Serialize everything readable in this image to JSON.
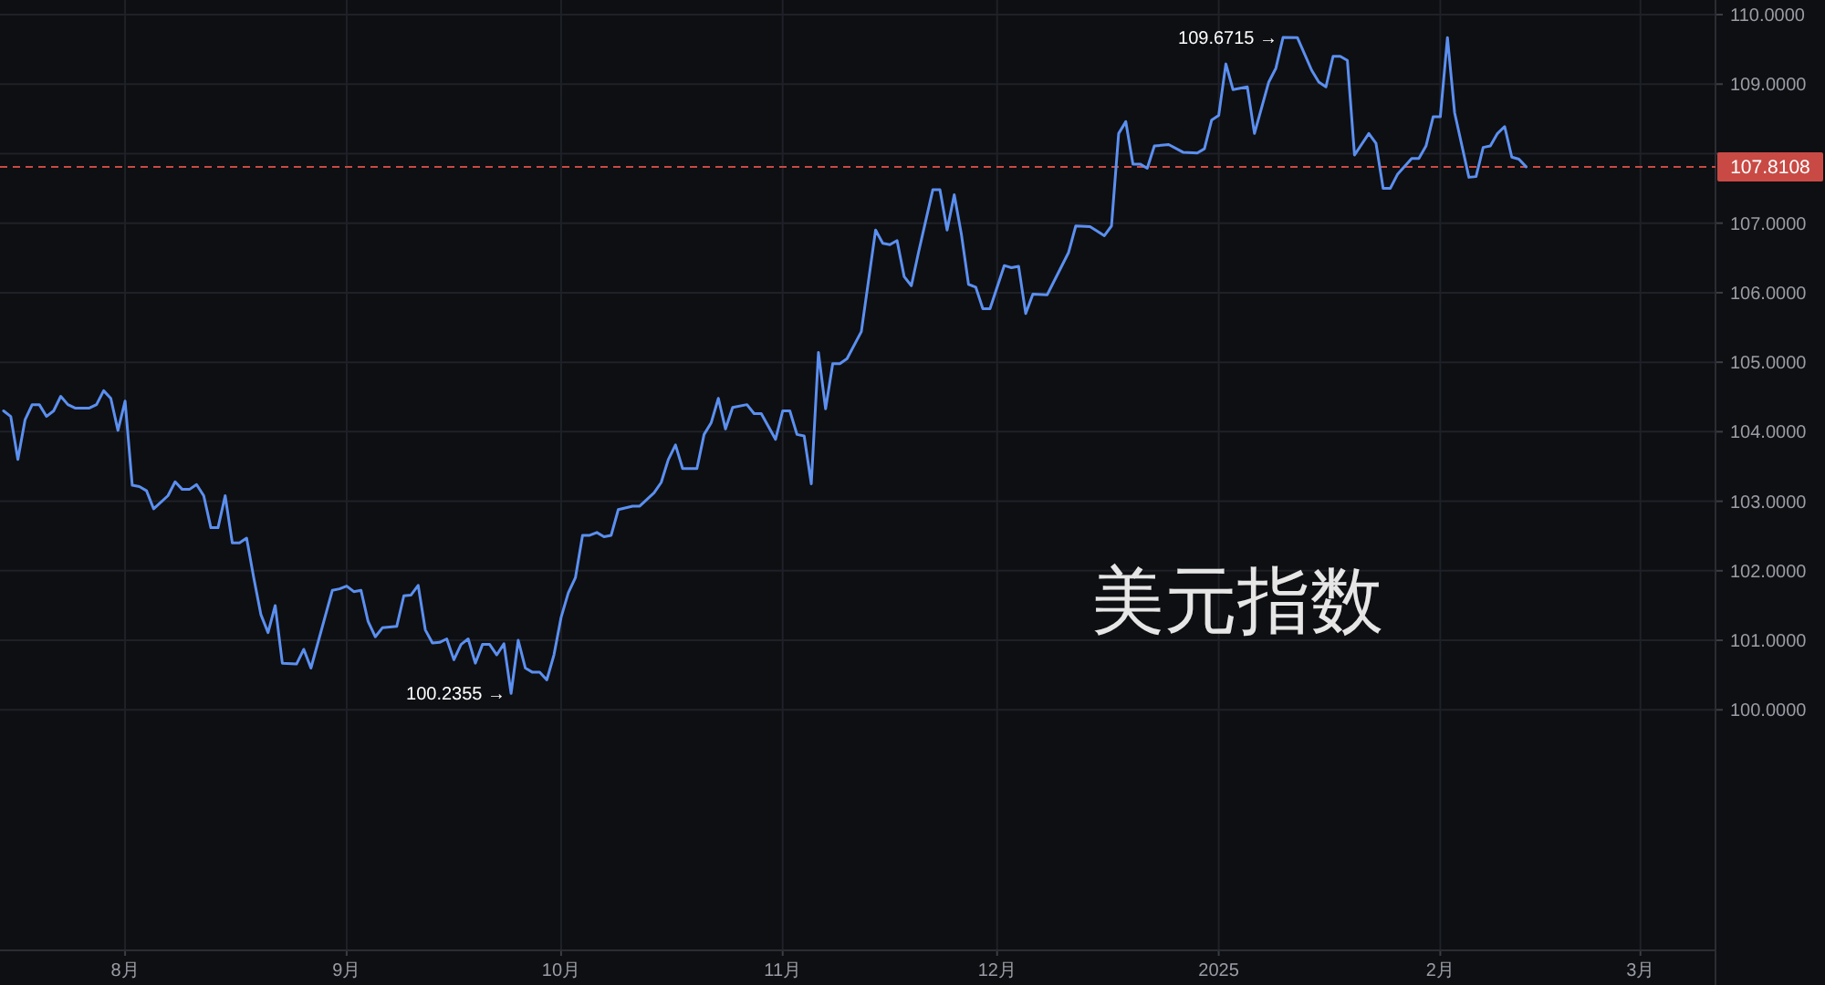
{
  "chart_data": {
    "type": "line",
    "title": "美元指数",
    "x": [
      "2024-07-15",
      "2024-07-16",
      "2024-07-17",
      "2024-07-18",
      "2024-07-19",
      "2024-07-20",
      "2024-07-21",
      "2024-07-22",
      "2024-07-23",
      "2024-07-24",
      "2024-07-25",
      "2024-07-27",
      "2024-07-28",
      "2024-07-29",
      "2024-07-30",
      "2024-07-31",
      "2024-08-01",
      "2024-08-02",
      "2024-08-03",
      "2024-08-04",
      "2024-08-05",
      "2024-08-07",
      "2024-08-08",
      "2024-08-09",
      "2024-08-10",
      "2024-08-11",
      "2024-08-12",
      "2024-08-13",
      "2024-08-14",
      "2024-08-15",
      "2024-08-16",
      "2024-08-17",
      "2024-08-18",
      "2024-08-19",
      "2024-08-20",
      "2024-08-21",
      "2024-08-22",
      "2024-08-23",
      "2024-08-25",
      "2024-08-26",
      "2024-08-27",
      "2024-08-30",
      "2024-08-31",
      "2024-09-01",
      "2024-09-02",
      "2024-09-03",
      "2024-09-04",
      "2024-09-05",
      "2024-09-06",
      "2024-09-08",
      "2024-09-09",
      "2024-09-10",
      "2024-09-11",
      "2024-09-12",
      "2024-09-13",
      "2024-09-14",
      "2024-09-15",
      "2024-09-16",
      "2024-09-17",
      "2024-09-18",
      "2024-09-19",
      "2024-09-20",
      "2024-09-21",
      "2024-09-22",
      "2024-09-23",
      "2024-09-24",
      "2024-09-25",
      "2024-09-26",
      "2024-09-27",
      "2024-09-28",
      "2024-09-29",
      "2024-09-30",
      "2024-10-01",
      "2024-10-02",
      "2024-10-03",
      "2024-10-04",
      "2024-10-05",
      "2024-10-06",
      "2024-10-07",
      "2024-10-08",
      "2024-10-09",
      "2024-10-11",
      "2024-10-12",
      "2024-10-14",
      "2024-10-15",
      "2024-10-16",
      "2024-10-17",
      "2024-10-18",
      "2024-10-20",
      "2024-10-21",
      "2024-10-22",
      "2024-10-23",
      "2024-10-24",
      "2024-10-25",
      "2024-10-27",
      "2024-10-28",
      "2024-10-29",
      "2024-10-31",
      "2024-11-01",
      "2024-11-02",
      "2024-11-03",
      "2024-11-04",
      "2024-11-05",
      "2024-11-06",
      "2024-11-07",
      "2024-11-08",
      "2024-11-09",
      "2024-11-10",
      "2024-11-12",
      "2024-11-14",
      "2024-11-15",
      "2024-11-16",
      "2024-11-17",
      "2024-11-18",
      "2024-11-19",
      "2024-11-20",
      "2024-11-22",
      "2024-11-23",
      "2024-11-24",
      "2024-11-25",
      "2024-11-26",
      "2024-11-27",
      "2024-11-28",
      "2024-11-29",
      "2024-11-30",
      "2024-12-02",
      "2024-12-03",
      "2024-12-04",
      "2024-12-05",
      "2024-12-06",
      "2024-12-08",
      "2024-12-11",
      "2024-12-12",
      "2024-12-14",
      "2024-12-16",
      "2024-12-17",
      "2024-12-18",
      "2024-12-19",
      "2024-12-20",
      "2024-12-21",
      "2024-12-22",
      "2024-12-23",
      "2024-12-25",
      "2024-12-27",
      "2024-12-29",
      "2024-12-30",
      "2024-12-31",
      "2025-01-01",
      "2025-01-02",
      "2025-01-03",
      "2025-01-05",
      "2025-01-06",
      "2025-01-08",
      "2025-01-09",
      "2025-01-10",
      "2025-01-12",
      "2025-01-14",
      "2025-01-15",
      "2025-01-16",
      "2025-01-17",
      "2025-01-18",
      "2025-01-19",
      "2025-01-20",
      "2025-01-22",
      "2025-01-23",
      "2025-01-24",
      "2025-01-25",
      "2025-01-26",
      "2025-01-28",
      "2025-01-29",
      "2025-01-30",
      "2025-01-31",
      "2025-02-01",
      "2025-02-02",
      "2025-02-03",
      "2025-02-05",
      "2025-02-06",
      "2025-02-07",
      "2025-02-08",
      "2025-02-09",
      "2025-02-10",
      "2025-02-11",
      "2025-02-12",
      "2025-02-13"
    ],
    "series": [
      {
        "color": "#5b8ff0",
        "values": [
          104.3,
          104.22,
          103.6,
          104.17,
          104.39,
          104.39,
          104.22,
          104.3,
          104.51,
          104.39,
          104.34,
          104.34,
          104.39,
          104.59,
          104.48,
          104.02,
          104.44,
          103.23,
          103.21,
          103.15,
          102.89,
          103.08,
          103.28,
          103.17,
          103.17,
          103.24,
          103.08,
          102.62,
          102.62,
          103.08,
          102.4,
          102.4,
          102.47,
          101.9,
          101.37,
          101.11,
          101.5,
          100.67,
          100.66,
          100.87,
          100.6,
          101.72,
          101.74,
          101.78,
          101.7,
          101.72,
          101.27,
          101.05,
          101.18,
          101.2,
          101.64,
          101.65,
          101.79,
          101.15,
          100.96,
          100.97,
          101.02,
          100.72,
          100.94,
          101.02,
          100.67,
          100.94,
          100.94,
          100.79,
          100.95,
          100.2355,
          101.0,
          100.6,
          100.54,
          100.54,
          100.43,
          100.79,
          101.33,
          101.68,
          101.9,
          102.51,
          102.51,
          102.55,
          102.49,
          102.51,
          102.88,
          102.93,
          102.93,
          103.12,
          103.27,
          103.6,
          103.81,
          103.47,
          103.47,
          103.96,
          104.13,
          104.48,
          104.04,
          104.35,
          104.39,
          104.26,
          104.26,
          103.89,
          104.3,
          104.3,
          103.96,
          103.94,
          103.25,
          105.14,
          104.33,
          104.98,
          104.98,
          105.05,
          105.44,
          106.9,
          106.71,
          106.69,
          106.75,
          106.23,
          106.1,
          106.58,
          107.48,
          107.48,
          106.9,
          107.41,
          106.84,
          106.12,
          106.08,
          105.77,
          105.77,
          106.39,
          106.36,
          106.38,
          105.7,
          105.98,
          105.97,
          106.58,
          106.96,
          106.95,
          106.82,
          106.96,
          108.29,
          108.46,
          107.85,
          107.85,
          107.79,
          108.11,
          108.13,
          108.02,
          108.01,
          108.07,
          108.48,
          108.55,
          109.29,
          108.92,
          108.96,
          108.29,
          109.03,
          109.23,
          109.6715,
          109.67,
          109.2,
          109.03,
          108.96,
          109.4,
          109.4,
          109.34,
          107.98,
          108.29,
          108.15,
          107.5,
          107.5,
          107.7,
          107.93,
          107.93,
          108.11,
          108.53,
          108.53,
          109.67,
          108.59,
          107.66,
          107.67,
          108.09,
          108.11,
          108.29,
          108.39,
          107.95,
          107.92,
          107.8108
        ]
      }
    ],
    "xlim": [
      "2024-07-14T12:00",
      "2025-03-11T12:00"
    ],
    "xticks": [
      {
        "value": "2024-08-01",
        "label": "8月"
      },
      {
        "value": "2024-09-01",
        "label": "9月"
      },
      {
        "value": "2024-10-01",
        "label": "10月"
      },
      {
        "value": "2024-11-01",
        "label": "11月"
      },
      {
        "value": "2024-12-01",
        "label": "12月"
      },
      {
        "value": "2025-01-01",
        "label": "2025"
      },
      {
        "value": "2025-02-01",
        "label": "2月"
      },
      {
        "value": "2025-03-01",
        "label": "3月"
      }
    ],
    "ylim": [
      96.54,
      110.21
    ],
    "yticks": [
      {
        "value": 100,
        "label": "100.0000"
      },
      {
        "value": 101,
        "label": "101.0000"
      },
      {
        "value": 102,
        "label": "102.0000"
      },
      {
        "value": 103,
        "label": "103.0000"
      },
      {
        "value": 104,
        "label": "104.0000"
      },
      {
        "value": 105,
        "label": "105.0000"
      },
      {
        "value": 106,
        "label": "106.0000"
      },
      {
        "value": 107,
        "label": "107.0000"
      },
      {
        "value": 108,
        "label": null
      },
      {
        "value": 109,
        "label": "109.0000"
      },
      {
        "value": 110,
        "label": "110.0000"
      }
    ],
    "grid": true,
    "ref_lines": [
      {
        "axis": "y",
        "value": 107.8108,
        "label": "107.8108",
        "color": "#c94a44",
        "line_style": "dashed"
      }
    ],
    "annotations": [
      {
        "text": "109.6715 →",
        "x": "2025-01-10",
        "y": 109.6715
      },
      {
        "text": "100.2355 →",
        "x": "2024-09-24",
        "y": 100.2355
      }
    ]
  }
}
